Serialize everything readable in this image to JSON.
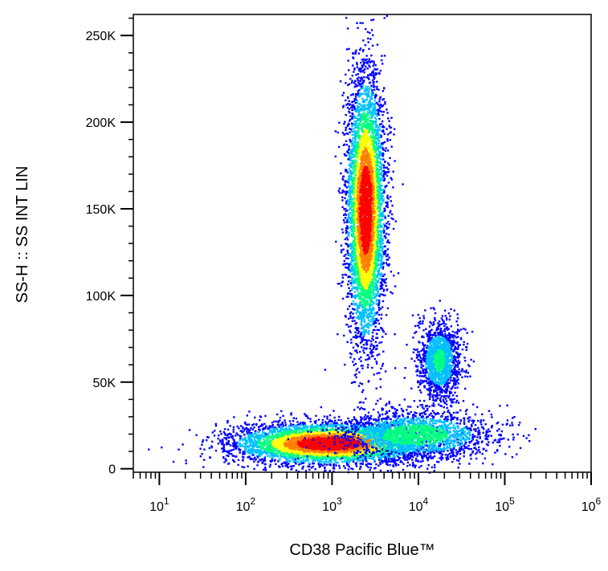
{
  "chart_data": {
    "type": "scatter",
    "subtype": "flow-cytometry-density-dot-plot",
    "xlabel": "CD38 Pacific Blue™",
    "ylabel": "SS-H :: SS INT LIN",
    "x_scale": "log",
    "y_scale": "linear",
    "xlim": [
      5,
      1000000
    ],
    "ylim": [
      -2000,
      262144
    ],
    "x_ticks": [
      {
        "base": "10",
        "exp": "1",
        "value": 10
      },
      {
        "base": "10",
        "exp": "2",
        "value": 100
      },
      {
        "base": "10",
        "exp": "3",
        "value": 1000
      },
      {
        "base": "10",
        "exp": "4",
        "value": 10000
      },
      {
        "base": "10",
        "exp": "5",
        "value": 100000
      },
      {
        "base": "10",
        "exp": "6",
        "value": 1000000
      }
    ],
    "y_ticks": [
      {
        "label": "0",
        "value": 0
      },
      {
        "label": "50K",
        "value": 50000
      },
      {
        "label": "100K",
        "value": 100000
      },
      {
        "label": "150K",
        "value": 150000
      },
      {
        "label": "200K",
        "value": 200000
      },
      {
        "label": "250K",
        "value": 250000
      }
    ],
    "grid": false,
    "legend": "none",
    "color_scale": [
      "#0000ff",
      "#00c0ff",
      "#00ff80",
      "#ffff00",
      "#ff8000",
      "#ff0000"
    ],
    "populations": [
      {
        "center_x": 2400,
        "center_y": 150000,
        "spread_log_x": 0.11,
        "spread_y": 38000,
        "count": 5200
      },
      {
        "center_x": 17000,
        "center_y": 63000,
        "spread_log_x": 0.12,
        "spread_y": 11000,
        "count": 1500
      },
      {
        "center_x": 900,
        "center_y": 15000,
        "spread_log_x": 0.55,
        "spread_y": 6000,
        "count": 5000
      },
      {
        "center_x": 9000,
        "center_y": 20000,
        "spread_log_x": 0.45,
        "spread_y": 7000,
        "count": 1800
      }
    ]
  }
}
